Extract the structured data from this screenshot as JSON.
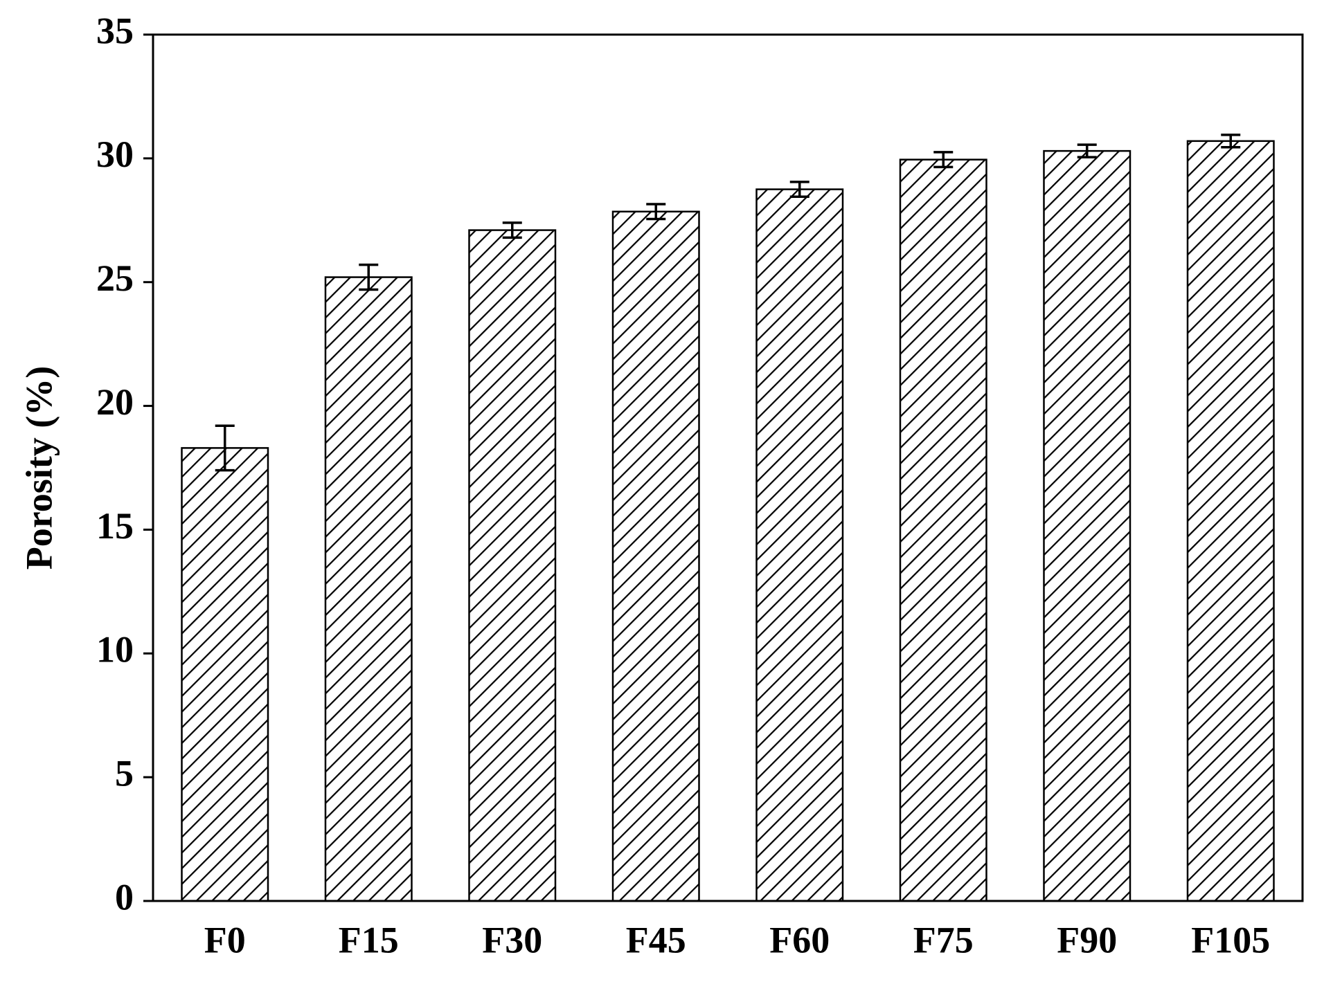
{
  "chart_data": {
    "type": "bar",
    "y_label": "Porosity (%)",
    "categories": [
      "F0",
      "F15",
      "F30",
      "F45",
      "F60",
      "F75",
      "F90",
      "F105"
    ],
    "values": [
      18.3,
      25.2,
      27.1,
      27.85,
      28.75,
      29.95,
      30.3,
      30.7
    ],
    "errors": [
      0.9,
      0.5,
      0.3,
      0.3,
      0.3,
      0.3,
      0.25,
      0.25
    ],
    "color": "#000000",
    "ylim": [
      0,
      35
    ],
    "yticks": [
      0,
      5,
      10,
      15,
      20,
      25,
      30,
      35
    ],
    "grid": false
  }
}
